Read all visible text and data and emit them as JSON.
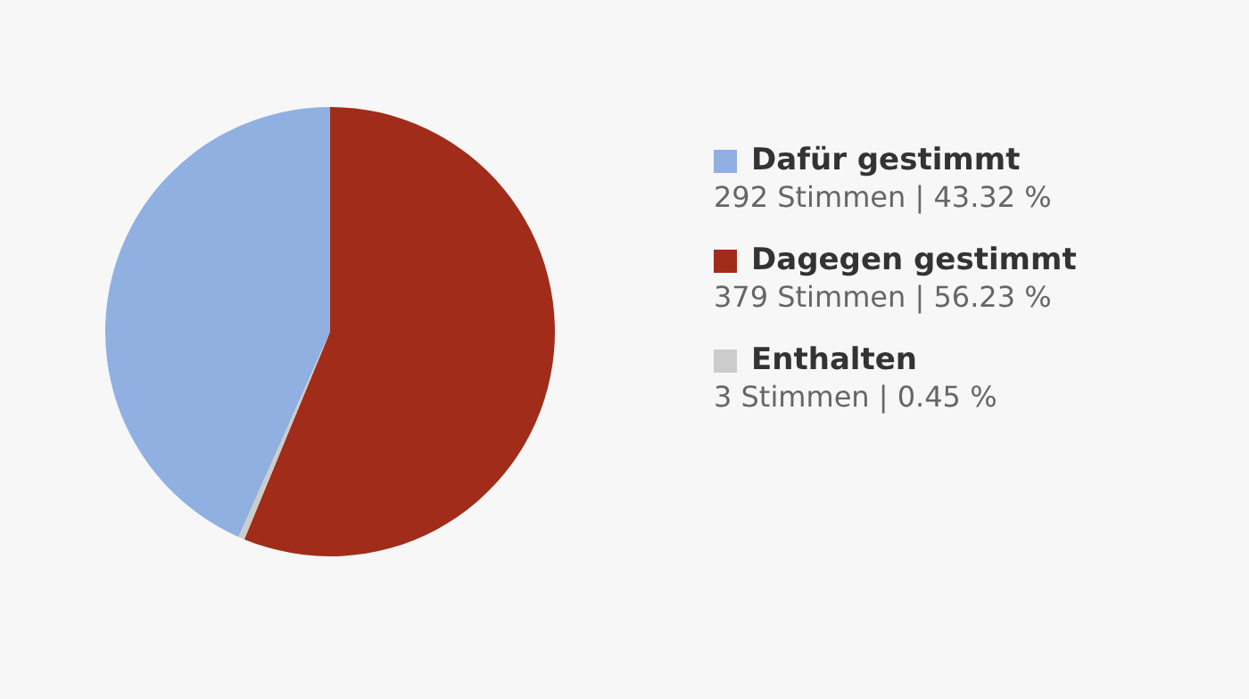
{
  "chart_data": {
    "type": "pie",
    "categories": [
      "Dafür gestimmt",
      "Dagegen gestimmt",
      "Enthalten"
    ],
    "values": [
      292,
      379,
      3
    ],
    "colors": [
      "#8fb0e0",
      "#a12c1a",
      "#cccccc"
    ],
    "value_labels": [
      "292 Stimmen | 43.32 %",
      "379 Stimmen | 56.23 %",
      "3 Stimmen | 0.45 %"
    ],
    "legend": "right"
  }
}
